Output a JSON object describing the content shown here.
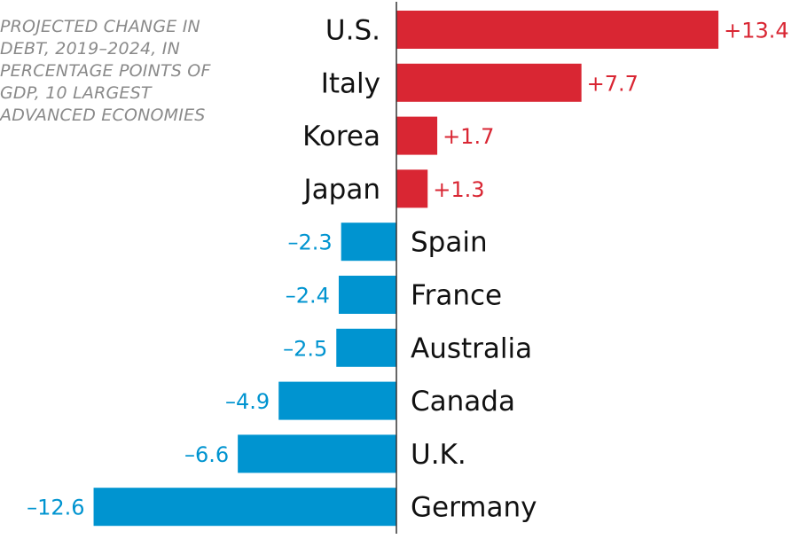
{
  "chart_data": {
    "type": "bar",
    "orientation": "horizontal",
    "title": "PROJECTED CHANGE IN DEBT, 2019–2024, IN PERCENTAGE POINTS OF GDP, 10 LARGEST ADVANCED ECONOMIES",
    "xlabel": "",
    "ylabel": "",
    "categories": [
      "U.S.",
      "Italy",
      "Korea",
      "Japan",
      "Spain",
      "France",
      "Australia",
      "Canada",
      "U.K.",
      "Germany"
    ],
    "values": [
      13.4,
      7.7,
      1.7,
      1.3,
      -2.3,
      -2.4,
      -2.5,
      -4.9,
      -6.6,
      -12.6
    ],
    "value_labels": [
      "+13.4",
      "+7.7",
      "+1.7",
      "+1.3",
      "–2.3",
      "–2.4",
      "–2.5",
      "–4.9",
      "–6.6",
      "–12.6"
    ],
    "xlim": [
      -12.6,
      13.4
    ],
    "grid": false,
    "legend": "none",
    "colors": {
      "positive": "#d92633",
      "negative": "#0094d0",
      "axis": "#333333",
      "category_text": "#111111"
    }
  }
}
